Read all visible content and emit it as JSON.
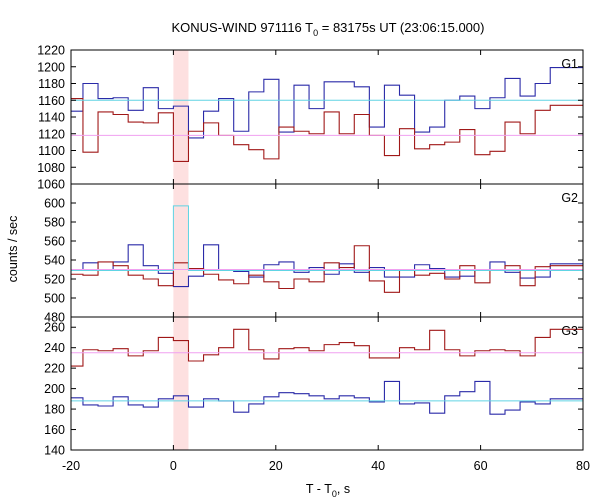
{
  "chart_data": {
    "type": "line",
    "title_main": "KONUS-WIND 971116 T",
    "title_sub": "0",
    "title_rest": " = 83175s UT (23:06:15.000)",
    "xlabel_main": "T - T",
    "xlabel_sub": "0",
    "xlabel_rest": ", s",
    "ylabel": "counts / sec",
    "xlim": [
      -20,
      80
    ],
    "xticks": [
      -20,
      0,
      20,
      40,
      60,
      80
    ],
    "highlight": {
      "x0": 0.0,
      "x1": 2.944,
      "color": "#fde0e0"
    },
    "bin_edges": [
      -17.664,
      -14.72,
      -11.776,
      -8.832,
      -5.888,
      -2.944,
      0.0,
      2.944,
      5.888,
      8.832,
      11.776,
      14.72,
      17.664,
      20.608,
      23.552,
      26.496,
      29.44,
      32.384,
      35.328,
      38.272,
      41.216,
      44.16,
      47.104,
      50.048,
      52.992,
      55.936,
      58.88,
      61.824,
      64.768,
      67.712,
      70.656,
      73.6,
      76.544,
      79.488
    ],
    "panels": [
      {
        "label": "G1",
        "ylim": [
          1060,
          1220
        ],
        "yticks": [
          1060,
          1080,
          1100,
          1120,
          1140,
          1160,
          1180,
          1200,
          1220
        ],
        "series": [
          {
            "color": "#2a2aa8",
            "values": [
              1147,
              1180,
              1162,
              1163,
              1148,
              1175,
              1150,
              1153,
              1115,
              1147,
              1162,
              1123,
              1170,
              1185,
              1122,
              1178,
              1150,
              1182,
              1182,
              1176,
              1128,
              1178,
              1166,
              1122,
              1128,
              1160,
              1165,
              1150,
              1163,
              1186,
              1165,
              1180,
              1199
            ]
          },
          {
            "color": "#a01818",
            "values": [
              1162,
              1098,
              1146,
              1143,
              1134,
              1133,
              1145,
              1087,
              1123,
              1133,
              1118,
              1107,
              1101,
              1090,
              1128,
              1123,
              1120,
              1146,
              1120,
              1143,
              1118,
              1094,
              1126,
              1102,
              1107,
              1110,
              1125,
              1095,
              1099,
              1134,
              1120,
              1148,
              1154
            ]
          },
          {
            "color": "#60d4e4",
            "values": [
              1160
            ],
            "mean": true
          },
          {
            "color": "#f0a0f0",
            "values": [
              1118
            ],
            "mean": true
          }
        ]
      },
      {
        "label": "G2",
        "ylim": [
          480,
          620
        ],
        "yticks": [
          480,
          500,
          520,
          540,
          560,
          580,
          600
        ],
        "series": [
          {
            "color": "#2a2aa8",
            "values": [
              529,
              537,
              529,
              538,
              556,
              534,
              526,
              512,
              523,
              556,
              530,
              528,
              522,
              535,
              538,
              527,
              532,
              525,
              536,
              527,
              532,
              522,
              522,
              535,
              531,
              522,
              523,
              530,
              538,
              527,
              521,
              522,
              536
            ]
          },
          {
            "color": "#a01818",
            "values": [
              525,
              524,
              538,
              534,
              524,
              520,
              513,
              537,
              531,
              525,
              519,
              515,
              524,
              517,
              510,
              520,
              517,
              537,
              532,
              555,
              518,
              506,
              530,
              524,
              526,
              520,
              534,
              516,
              530,
              534,
              513,
              533,
              534
            ]
          },
          {
            "color": "#60d4e4",
            "values": [
              529
            ],
            "mean": true,
            "spike": {
              "bin": 6,
              "value": 597
            }
          },
          {
            "color": "#f0a0f0",
            "values": [
              530
            ],
            "mean": true
          }
        ]
      },
      {
        "label": "G3",
        "ylim": [
          140,
          270
        ],
        "yticks": [
          140,
          160,
          180,
          200,
          220,
          240,
          260
        ],
        "series": [
          {
            "color": "#a01818",
            "values": [
              222,
              238,
              237,
              239,
              232,
              237,
              250,
              247,
              227,
              233,
              240,
              258,
              238,
              229,
              239,
              240,
              237,
              243,
              245,
              242,
              230,
              230,
              240,
              238,
              257,
              238,
              232,
              237,
              238,
              237,
              232,
              250,
              258
            ]
          },
          {
            "color": "#2a2aa8",
            "values": [
              191,
              184,
              183,
              192,
              184,
              182,
              190,
              193,
              182,
              190,
              188,
              177,
              185,
              192,
              196,
              195,
              193,
              190,
              193,
              191,
              187,
              207,
              185,
              186,
              176,
              193,
              197,
              207,
              175,
              179,
              187,
              185,
              190
            ]
          },
          {
            "color": "#f0a0f0",
            "values": [
              235
            ],
            "mean": true
          },
          {
            "color": "#60d4e4",
            "values": [
              188
            ],
            "mean": true
          }
        ]
      }
    ]
  }
}
